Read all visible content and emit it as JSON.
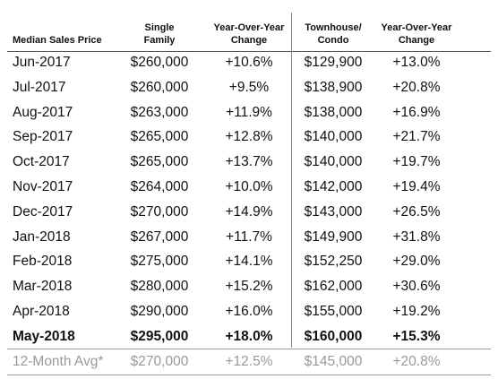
{
  "table": {
    "header": [
      [
        "Median Sales Price"
      ],
      [
        "Single",
        "Family"
      ],
      [
        "Year-Over-Year",
        "Change"
      ],
      [
        "Townhouse/",
        "Condo"
      ],
      [
        "Year-Over-Year",
        "Change"
      ]
    ],
    "rows": [
      [
        "Jun-2017",
        "$260,000",
        "+10.6%",
        "$129,900",
        "+13.0%"
      ],
      [
        "Jul-2017",
        "$260,000",
        "+9.5%",
        "$138,900",
        "+20.8%"
      ],
      [
        "Aug-2017",
        "$263,000",
        "+11.9%",
        "$138,000",
        "+16.9%"
      ],
      [
        "Sep-2017",
        "$265,000",
        "+12.8%",
        "$140,000",
        "+21.7%"
      ],
      [
        "Oct-2017",
        "$265,000",
        "+13.7%",
        "$140,000",
        "+19.7%"
      ],
      [
        "Nov-2017",
        "$264,000",
        "+10.0%",
        "$142,000",
        "+19.4%"
      ],
      [
        "Dec-2017",
        "$270,000",
        "+14.9%",
        "$143,000",
        "+26.5%"
      ],
      [
        "Jan-2018",
        "$267,000",
        "+11.7%",
        "$149,900",
        "+31.8%"
      ],
      [
        "Feb-2018",
        "$275,000",
        "+14.1%",
        "$152,250",
        "+29.0%"
      ],
      [
        "Mar-2018",
        "$280,000",
        "+15.2%",
        "$162,000",
        "+30.6%"
      ],
      [
        "Apr-2018",
        "$290,000",
        "+16.0%",
        "$155,000",
        "+19.2%"
      ],
      [
        "May-2018",
        "$295,000",
        "+18.0%",
        "$160,000",
        "+15.3%"
      ]
    ],
    "average_row": [
      "12-Month Avg*",
      "$270,000",
      "+12.5%",
      "$145,000",
      "+20.8%"
    ]
  }
}
